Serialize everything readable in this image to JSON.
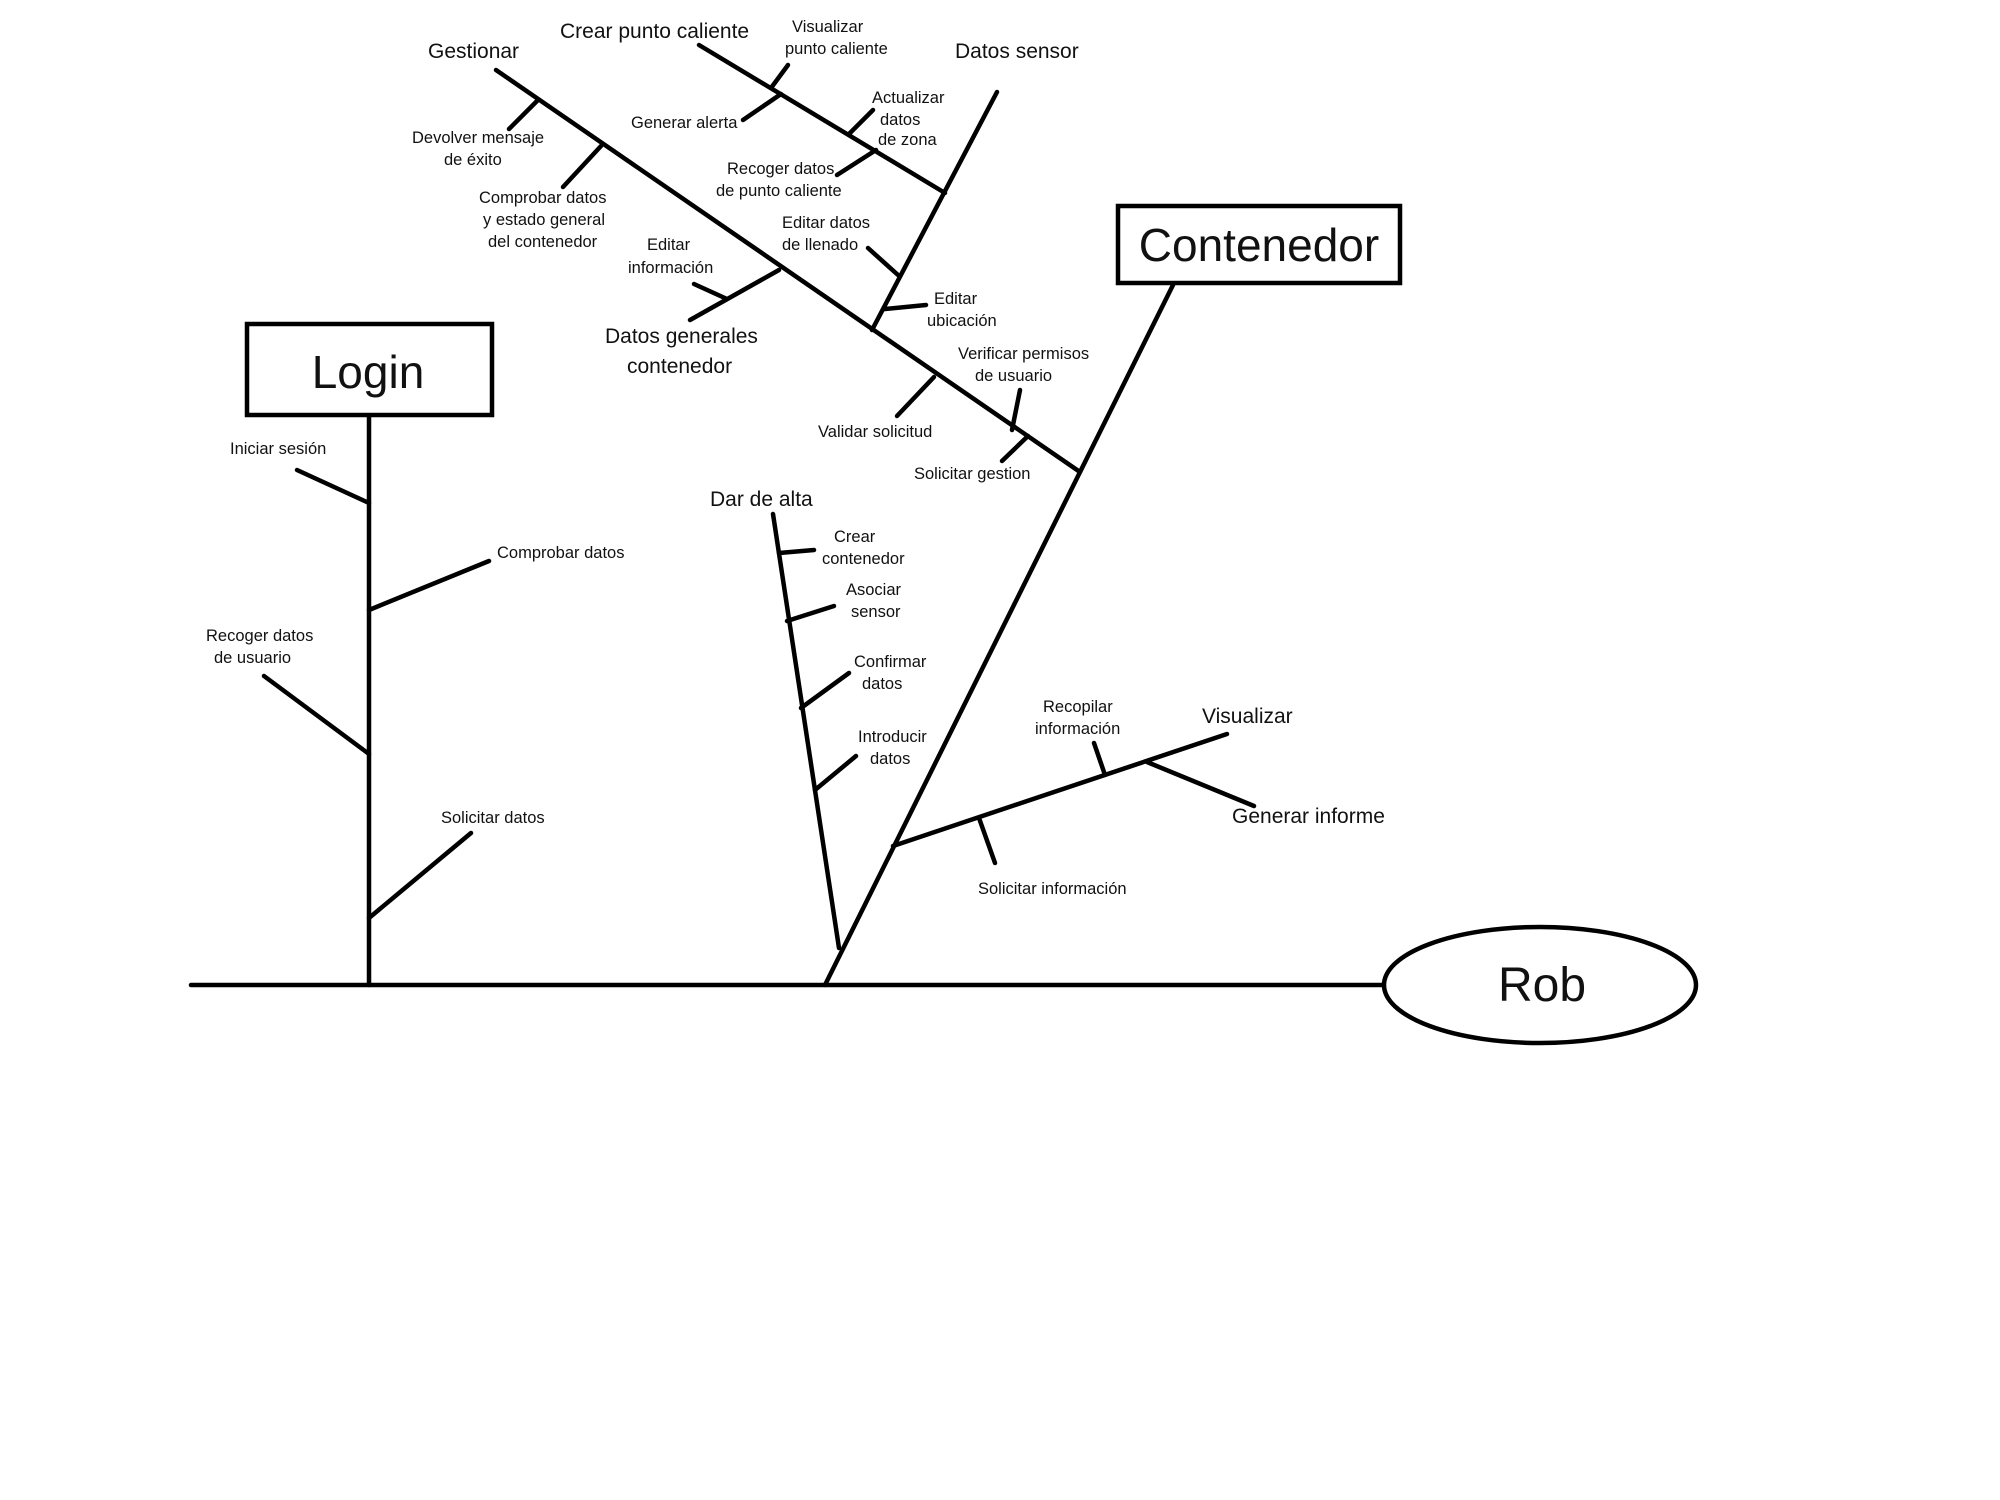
{
  "diagram": {
    "effect": "Rob",
    "categories": {
      "login": "Login",
      "contenedor": "Contenedor"
    },
    "login_causes": {
      "iniciar_sesion": "Iniciar sesión",
      "comprobar_datos": "Comprobar datos",
      "recoger_datos_usuario_1": "Recoger datos",
      "recoger_datos_usuario_2": "de usuario",
      "solicitar_datos": "Solicitar datos"
    },
    "gestionar": {
      "title": "Gestionar",
      "devolver_mensaje_1": "Devolver mensaje",
      "devolver_mensaje_2": "de éxito",
      "comprobar_estado_1": "Comprobar datos",
      "comprobar_estado_2": "y estado general",
      "comprobar_estado_3": "del contenedor",
      "validar_solicitud": "Validar solicitud",
      "verificar_permisos_1": "Verificar permisos",
      "verificar_permisos_2": "de usuario",
      "solicitar_gestion": "Solicitar gestion"
    },
    "crear_punto_caliente": {
      "title": "Crear punto caliente",
      "visualizar_1": "Visualizar",
      "visualizar_2": "punto caliente",
      "generar_alerta": "Generar alerta",
      "recoger_datos_1": "Recoger datos",
      "recoger_datos_2": "de punto caliente"
    },
    "datos_sensor": {
      "title": "Datos sensor",
      "actualizar_1": "Actualizar",
      "actualizar_2": "datos",
      "actualizar_3": "de zona",
      "editar_llenado_1": "Editar datos",
      "editar_llenado_2": "de llenado",
      "editar_ubicacion_1": "Editar",
      "editar_ubicacion_2": "ubicación"
    },
    "datos_generales": {
      "title_1": "Datos generales",
      "title_2": "contenedor",
      "editar_info_1": "Editar",
      "editar_info_2": "información"
    },
    "dar_de_alta": {
      "title": "Dar de alta",
      "crear_1": "Crear",
      "crear_2": "contenedor",
      "asociar_1": "Asociar",
      "asociar_2": "sensor",
      "confirmar_1": "Confirmar",
      "confirmar_2": "datos",
      "introducir_1": "Introducir",
      "introducir_2": "datos"
    },
    "visualizar": {
      "title": "Visualizar",
      "generar_informe": "Generar informe",
      "recopilar_1": "Recopilar",
      "recopilar_2": "información",
      "solicitar_info": "Solicitar información"
    }
  }
}
